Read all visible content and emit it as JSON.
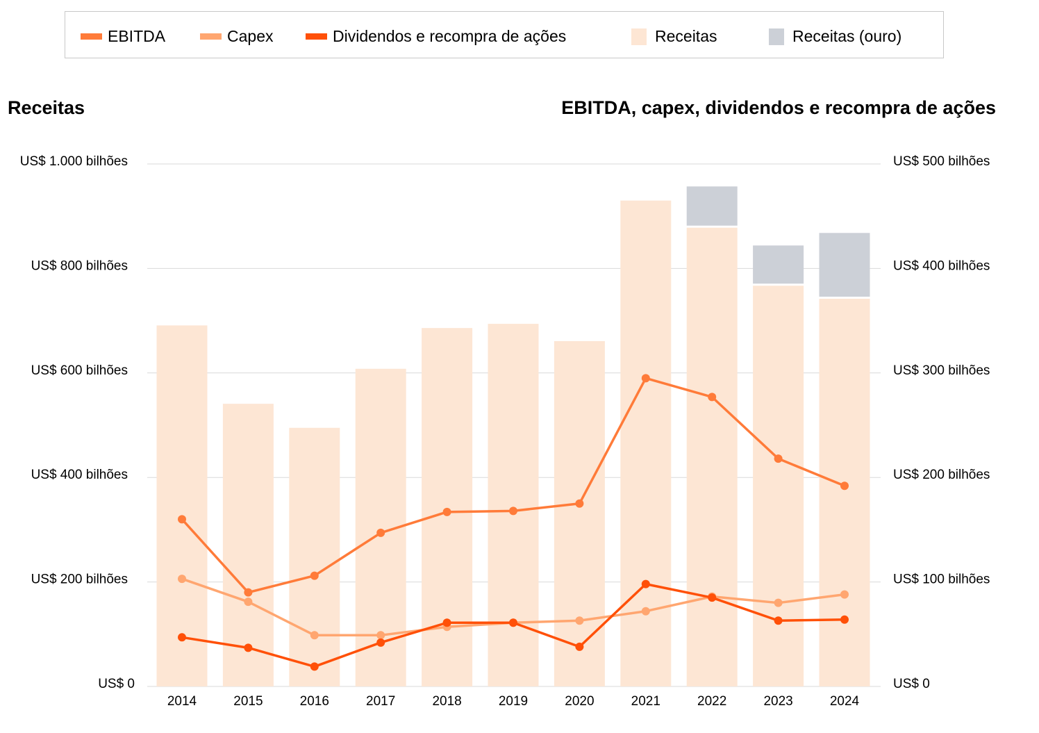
{
  "chart_data": {
    "type": "bar+line",
    "legend_position": "top",
    "legend": [
      "EBITDA",
      "Capex",
      "Dividendos e recompra de ações",
      "Receitas",
      "Receitas (ouro)"
    ],
    "left_title": "Receitas",
    "right_title": "EBITDA, capex, dividendos e recompra de ações",
    "categories": [
      "2014",
      "2015",
      "2016",
      "2017",
      "2018",
      "2019",
      "2020",
      "2021",
      "2022",
      "2023",
      "2024"
    ],
    "left_axis": {
      "ylim": [
        0,
        1000
      ],
      "ticks": [
        0,
        200,
        400,
        600,
        800,
        1000
      ],
      "tick_labels": [
        "US$ 0",
        "US$ 200 bilhões",
        "US$ 400 bilhões",
        "US$ 600 bilhões",
        "US$ 800 bilhões",
        "US$ 1.000 bilhões"
      ]
    },
    "right_axis": {
      "ylim": [
        0,
        500
      ],
      "ticks": [
        0,
        100,
        200,
        300,
        400,
        500
      ],
      "tick_labels": [
        "US$ 0",
        "US$ 100 bilhões",
        "US$ 200 bilhões",
        "US$ 300 bilhões",
        "US$ 400 bilhões",
        "US$ 500 bilhões"
      ]
    },
    "grid": true,
    "bars": [
      {
        "name": "Receitas",
        "axis": "left",
        "color": "#fde6d4",
        "values": [
          691,
          541,
          495,
          608,
          686,
          694,
          661,
          930,
          878,
          767,
          742
        ]
      },
      {
        "name": "Receitas (ouro)",
        "axis": "left",
        "stacked": true,
        "color": "#ccd0d7",
        "values": [
          0,
          0,
          0,
          0,
          0,
          0,
          0,
          0,
          79,
          77,
          126
        ]
      }
    ],
    "series": [
      {
        "name": "EBITDA",
        "axis": "right",
        "color": "#ff7b39",
        "values": [
          160,
          90,
          106,
          147,
          167,
          168,
          175,
          295,
          277,
          218,
          192
        ]
      },
      {
        "name": "Capex",
        "axis": "right",
        "color": "#ffa670",
        "values": [
          103,
          81,
          49,
          49,
          57,
          61,
          63,
          72,
          86,
          80,
          88
        ]
      },
      {
        "name": "Dividendos e recompra de ações",
        "axis": "right",
        "color": "#ff5008",
        "values": [
          47,
          37,
          19,
          42,
          61,
          61,
          38,
          98,
          85,
          63,
          64
        ]
      }
    ]
  }
}
